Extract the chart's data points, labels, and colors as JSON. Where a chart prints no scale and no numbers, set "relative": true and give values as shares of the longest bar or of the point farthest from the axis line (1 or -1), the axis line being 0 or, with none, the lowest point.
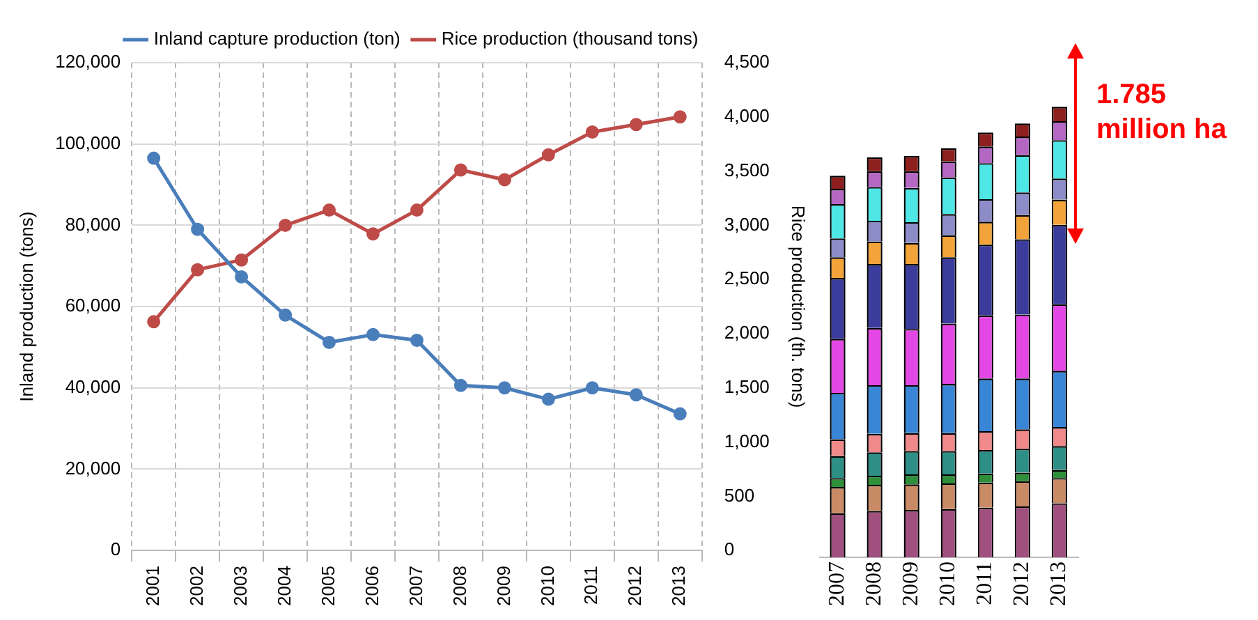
{
  "chart_data": [
    {
      "type": "line",
      "categories": [
        "2001",
        "2002",
        "2003",
        "2004",
        "2005",
        "2006",
        "2007",
        "2008",
        "2009",
        "2010",
        "2011",
        "2012",
        "2013"
      ],
      "series": [
        {
          "name": "Inland capture production (ton)",
          "color": "#4a7ebb",
          "values": [
            96500,
            79000,
            67300,
            57900,
            51200,
            53100,
            51700,
            40600,
            40000,
            37200,
            40000,
            38300,
            33600
          ]
        },
        {
          "name": "Rice production (thousand tons)",
          "color": "#be4b48",
          "axis": "y2",
          "values": [
            2110,
            2590,
            2680,
            3000,
            3140,
            2920,
            3140,
            3510,
            3420,
            3650,
            3860,
            3930,
            4000
          ]
        }
      ],
      "ylabel": "Inland production (tons)",
      "y2label": "Rice production (th. tons)",
      "ylim": [
        0,
        120000
      ],
      "yticks": [
        0,
        {
          "value": 20000,
          "label": "20,000"
        },
        {
          "value": 40000,
          "label": "40,000"
        },
        {
          "value": 60000,
          "label": "60,000"
        },
        {
          "value": 80000,
          "label": "80,000"
        },
        {
          "value": 100000,
          "label": "100,000"
        },
        {
          "value": 120000,
          "label": "120,000"
        }
      ],
      "y2lim": [
        0,
        4500
      ],
      "y2ticks": [
        0,
        500,
        {
          "value": 1000,
          "label": "1,000"
        },
        {
          "value": 1500,
          "label": "1,500"
        },
        {
          "value": 2000,
          "label": "2,000"
        },
        {
          "value": 2500,
          "label": "2,500"
        },
        {
          "value": 3000,
          "label": "3,000"
        },
        {
          "value": 3500,
          "label": "3,500"
        },
        {
          "value": 4000,
          "label": "4,000"
        },
        {
          "value": 4500,
          "label": "4,500"
        }
      ],
      "grid": true,
      "legend": "top",
      "marker": "circle",
      "line_style": "solid"
    },
    {
      "type": "bar",
      "stacked": true,
      "relative": true,
      "categories": [
        "2007",
        "2008",
        "2009",
        "2010",
        "2011",
        "2012",
        "2013"
      ],
      "series": [
        {
          "color": "#a0507f",
          "values": [
            0.098,
            0.103,
            0.105,
            0.107,
            0.11,
            0.113,
            0.12
          ]
        },
        {
          "color": "#c98a66",
          "values": [
            0.058,
            0.058,
            0.057,
            0.057,
            0.056,
            0.056,
            0.056
          ]
        },
        {
          "color": "#2f8f3a",
          "values": [
            0.02,
            0.02,
            0.022,
            0.02,
            0.02,
            0.019,
            0.018
          ]
        },
        {
          "color": "#2e8f86",
          "values": [
            0.049,
            0.052,
            0.052,
            0.052,
            0.052,
            0.053,
            0.053
          ]
        },
        {
          "color": "#f08a8a",
          "values": [
            0.037,
            0.041,
            0.04,
            0.04,
            0.042,
            0.043,
            0.042
          ]
        },
        {
          "color": "#3a86d6",
          "values": [
            0.103,
            0.108,
            0.106,
            0.109,
            0.117,
            0.113,
            0.125
          ]
        },
        {
          "color": "#e448e4",
          "values": [
            0.12,
            0.127,
            0.125,
            0.134,
            0.14,
            0.142,
            0.148
          ]
        },
        {
          "color": "#3b3c9c",
          "values": [
            0.135,
            0.142,
            0.144,
            0.147,
            0.157,
            0.167,
            0.176
          ]
        },
        {
          "color": "#f2a33a",
          "values": [
            0.046,
            0.05,
            0.047,
            0.049,
            0.051,
            0.054,
            0.056
          ]
        },
        {
          "color": "#8c8cc8",
          "values": [
            0.042,
            0.046,
            0.046,
            0.047,
            0.05,
            0.05,
            0.047
          ]
        },
        {
          "color": "#4fe6e6",
          "values": [
            0.076,
            0.075,
            0.076,
            0.081,
            0.08,
            0.083,
            0.085
          ]
        },
        {
          "color": "#b468c4",
          "values": [
            0.034,
            0.035,
            0.037,
            0.036,
            0.037,
            0.041,
            0.042
          ]
        },
        {
          "color": "#8e1f1f",
          "values": [
            0.029,
            0.031,
            0.034,
            0.029,
            0.031,
            0.029,
            0.032
          ]
        }
      ],
      "annotations": [
        "1.785 million ha"
      ]
    }
  ]
}
